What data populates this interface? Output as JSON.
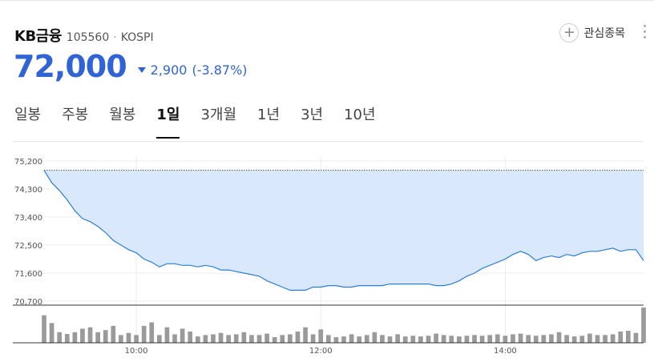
{
  "stock": {
    "name": "KB금융",
    "code": "105560",
    "separator": "·",
    "market": "KOSPI",
    "price": "72,000",
    "change": "2,900",
    "change_percent": "(-3.87%)",
    "direction": "down",
    "down_color": "#2f63d6"
  },
  "actions": {
    "favorite_label": "관심종목",
    "favorite_icon": "plus-icon",
    "more_icon": "kebab-icon"
  },
  "tabs": [
    {
      "label": "일봉",
      "active": false
    },
    {
      "label": "주봉",
      "active": false
    },
    {
      "label": "월봉",
      "active": false
    },
    {
      "label": "1일",
      "active": true
    },
    {
      "label": "3개월",
      "active": false
    },
    {
      "label": "1년",
      "active": false
    },
    {
      "label": "3년",
      "active": false
    },
    {
      "label": "10년",
      "active": false
    }
  ],
  "chart_data": {
    "type": "area",
    "previous_close": 74900,
    "ylim": [
      70700,
      75200
    ],
    "y_ticks": [
      "75,200",
      "74,300",
      "73,400",
      "72,500",
      "71,600",
      "70,700"
    ],
    "y_tick_values": [
      75200,
      74300,
      73400,
      72500,
      71600,
      70700
    ],
    "x_ticks": [
      "10:00",
      "12:00",
      "14:00"
    ],
    "x_tick_times": [
      "10:00",
      "12:00",
      "14:00"
    ],
    "x_range": [
      "09:00",
      "15:30"
    ],
    "line_color": "#2a7ee0",
    "fill_color": "#d9e9fb",
    "grid": true,
    "price": {
      "x": [
        "09:00",
        "09:05",
        "09:10",
        "09:15",
        "09:20",
        "09:25",
        "09:30",
        "09:35",
        "09:40",
        "09:45",
        "09:50",
        "09:55",
        "10:00",
        "10:05",
        "10:10",
        "10:15",
        "10:20",
        "10:25",
        "10:30",
        "10:35",
        "10:40",
        "10:45",
        "10:50",
        "10:55",
        "11:00",
        "11:05",
        "11:10",
        "11:15",
        "11:20",
        "11:25",
        "11:30",
        "11:35",
        "11:40",
        "11:45",
        "11:50",
        "11:55",
        "12:00",
        "12:05",
        "12:10",
        "12:15",
        "12:20",
        "12:25",
        "12:30",
        "12:35",
        "12:40",
        "12:45",
        "12:50",
        "12:55",
        "13:00",
        "13:05",
        "13:10",
        "13:15",
        "13:20",
        "13:25",
        "13:30",
        "13:35",
        "13:40",
        "13:45",
        "13:50",
        "13:55",
        "14:00",
        "14:05",
        "14:10",
        "14:15",
        "14:20",
        "14:25",
        "14:30",
        "14:35",
        "14:40",
        "14:45",
        "14:50",
        "14:55",
        "15:00",
        "15:05",
        "15:10",
        "15:15",
        "15:20",
        "15:25",
        "15:30"
      ],
      "y": [
        74900,
        74500,
        74250,
        73950,
        73600,
        73350,
        73250,
        73100,
        72900,
        72650,
        72500,
        72350,
        72250,
        72050,
        71950,
        71800,
        71900,
        71900,
        71850,
        71850,
        71800,
        71850,
        71800,
        71700,
        71700,
        71650,
        71600,
        71550,
        71500,
        71350,
        71250,
        71150,
        71050,
        71050,
        71050,
        71150,
        71150,
        71200,
        71200,
        71150,
        71150,
        71200,
        71200,
        71200,
        71200,
        71250,
        71250,
        71250,
        71250,
        71250,
        71250,
        71200,
        71200,
        71250,
        71350,
        71500,
        71600,
        71750,
        71850,
        71950,
        72050,
        72200,
        72300,
        72200,
        72000,
        72100,
        72150,
        72100,
        72200,
        72150,
        72250,
        72300,
        72300,
        72350,
        72400,
        72300,
        72350,
        72350,
        72000
      ]
    },
    "volume": {
      "x": [
        "09:00",
        "09:05",
        "09:10",
        "09:15",
        "09:20",
        "09:25",
        "09:30",
        "09:35",
        "09:40",
        "09:45",
        "09:50",
        "09:55",
        "10:00",
        "10:05",
        "10:10",
        "10:15",
        "10:20",
        "10:25",
        "10:30",
        "10:35",
        "10:40",
        "10:45",
        "10:50",
        "10:55",
        "11:00",
        "11:05",
        "11:10",
        "11:15",
        "11:20",
        "11:25",
        "11:30",
        "11:35",
        "11:40",
        "11:45",
        "11:50",
        "11:55",
        "12:00",
        "12:05",
        "12:10",
        "12:15",
        "12:20",
        "12:25",
        "12:30",
        "12:35",
        "12:40",
        "12:45",
        "12:50",
        "12:55",
        "13:00",
        "13:05",
        "13:10",
        "13:15",
        "13:20",
        "13:25",
        "13:30",
        "13:35",
        "13:40",
        "13:45",
        "13:50",
        "13:55",
        "14:00",
        "14:05",
        "14:10",
        "14:15",
        "14:20",
        "14:25",
        "14:30",
        "14:35",
        "14:40",
        "14:45",
        "14:50",
        "14:55",
        "15:00",
        "15:05",
        "15:10",
        "15:15",
        "15:20",
        "15:25",
        "15:30"
      ],
      "y": [
        0.78,
        0.56,
        0.3,
        0.25,
        0.3,
        0.4,
        0.44,
        0.3,
        0.36,
        0.48,
        0.22,
        0.28,
        0.22,
        0.48,
        0.58,
        0.22,
        0.44,
        0.24,
        0.4,
        0.32,
        0.18,
        0.22,
        0.24,
        0.28,
        0.22,
        0.24,
        0.3,
        0.22,
        0.22,
        0.26,
        0.16,
        0.22,
        0.24,
        0.32,
        0.44,
        0.24,
        0.38,
        0.22,
        0.16,
        0.18,
        0.24,
        0.18,
        0.22,
        0.3,
        0.22,
        0.18,
        0.24,
        0.18,
        0.2,
        0.18,
        0.2,
        0.26,
        0.22,
        0.2,
        0.18,
        0.2,
        0.22,
        0.2,
        0.22,
        0.24,
        0.2,
        0.24,
        0.26,
        0.22,
        0.2,
        0.22,
        0.24,
        0.3,
        0.22,
        0.18,
        0.2,
        0.26,
        0.22,
        0.22,
        0.24,
        0.32,
        0.34,
        0.28,
        1.0
      ]
    }
  }
}
